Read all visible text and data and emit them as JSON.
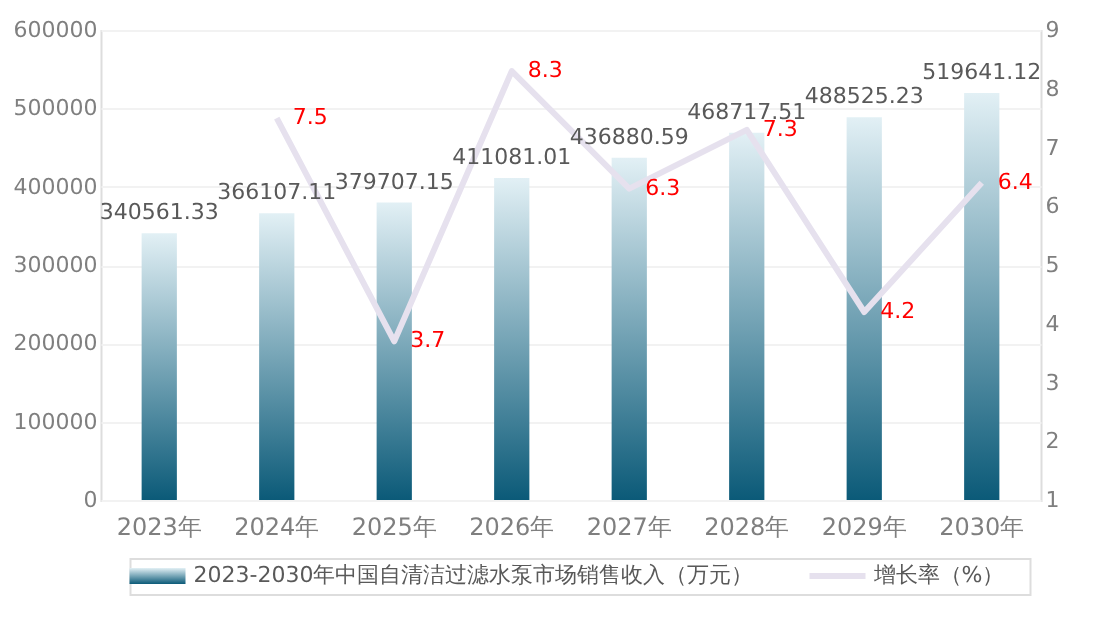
{
  "chart_data": {
    "type": "bar",
    "categories": [
      "2023年",
      "2024年",
      "2025年",
      "2026年",
      "2027年",
      "2028年",
      "2029年",
      "2030年"
    ],
    "series": [
      {
        "name": "2023-2030年中国自清洁过滤水泵市场销售收入（万元）",
        "color": "#0b5a78",
        "values": [
          340561.33,
          366107.11,
          379707.15,
          411081.01,
          436880.59,
          468717.51,
          488525.23,
          519641.12
        ]
      },
      {
        "name": "增长率（%）",
        "type": "line",
        "axis": "y2",
        "color": "#e6e1ee",
        "values": [
          null,
          7.5,
          3.7,
          8.3,
          6.3,
          7.3,
          4.2,
          6.4
        ]
      }
    ],
    "ylim": [
      0,
      600000
    ],
    "yticks": [
      0,
      100000,
      200000,
      300000,
      400000,
      500000,
      600000
    ],
    "y2lim": [
      1,
      9
    ],
    "y2ticks": [
      1,
      2,
      3,
      4,
      5,
      6,
      7,
      8,
      9
    ],
    "data_labels": true,
    "grid": "y",
    "legend": "bottom"
  }
}
